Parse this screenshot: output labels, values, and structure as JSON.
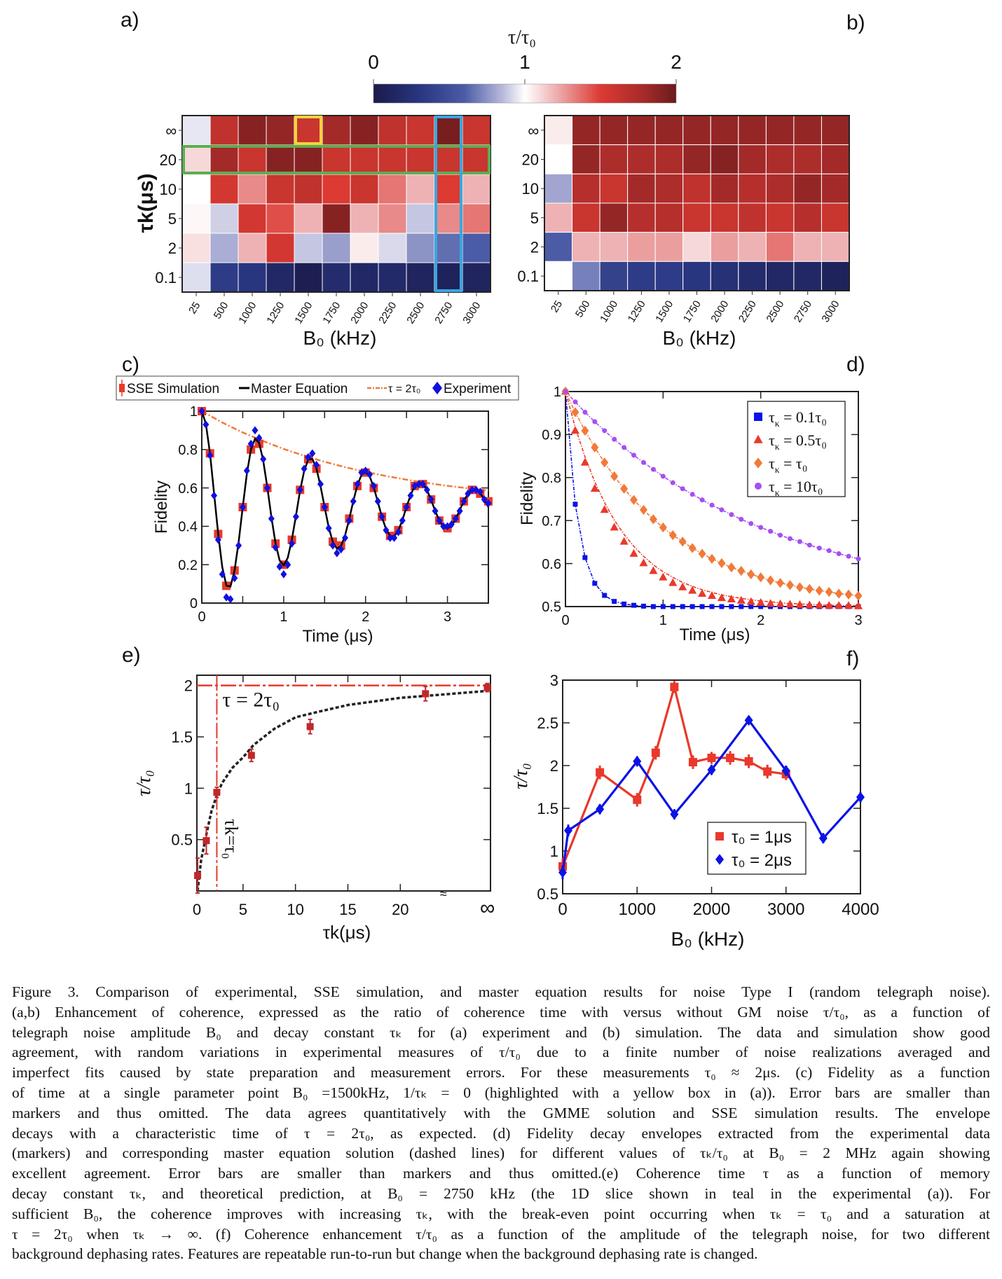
{
  "panel_labels": {
    "a": "a)",
    "b": "b)",
    "c": "c)",
    "d": "d)",
    "e": "e)",
    "f": "f)"
  },
  "colorbar": {
    "title": "τ/τ₀",
    "ticks": [
      "0",
      "1",
      "2"
    ],
    "tick_values": [
      0,
      1,
      2
    ],
    "range": [
      0,
      2
    ],
    "stops": [
      {
        "v": 0.0,
        "c": "#1b1a4a"
      },
      {
        "v": 0.3,
        "c": "#28357f"
      },
      {
        "v": 0.6,
        "c": "#4b5ba6"
      },
      {
        "v": 0.85,
        "c": "#b7b8da"
      },
      {
        "v": 1.0,
        "c": "#ffffff"
      },
      {
        "v": 1.2,
        "c": "#eeb2b4"
      },
      {
        "v": 1.5,
        "c": "#dc3a32"
      },
      {
        "v": 1.8,
        "c": "#a32a29"
      },
      {
        "v": 2.0,
        "c": "#6a1a1c"
      }
    ]
  },
  "chart_data": [
    {
      "id": "a",
      "type": "heatmap",
      "xlabel": "B₀ (kHz)",
      "ylabel": "τk(μs)",
      "columns": [
        "25",
        "500",
        "1000",
        "1250",
        "1500",
        "1750",
        "2000",
        "2250",
        "2500",
        "2750",
        "3000"
      ],
      "rows": [
        "∞",
        "20",
        "10",
        "5",
        "2",
        "0.1"
      ],
      "values": [
        [
          0.95,
          1.65,
          1.9,
          1.85,
          1.6,
          1.8,
          1.9,
          1.65,
          1.6,
          1.95,
          1.6
        ],
        [
          1.1,
          1.8,
          1.6,
          1.9,
          1.9,
          1.6,
          1.6,
          1.6,
          1.6,
          1.6,
          1.6
        ],
        [
          1.0,
          1.55,
          1.3,
          1.6,
          1.65,
          1.5,
          1.6,
          1.35,
          1.2,
          1.5,
          1.2
        ],
        [
          1.02,
          0.9,
          1.55,
          1.45,
          1.2,
          1.9,
          1.2,
          1.3,
          0.88,
          1.3,
          1.35
        ],
        [
          1.08,
          0.82,
          1.2,
          1.55,
          0.88,
          0.78,
          1.05,
          0.92,
          0.75,
          0.65,
          0.6
        ],
        [
          0.93,
          0.35,
          0.3,
          0.15,
          0.05,
          0.2,
          0.15,
          0.18,
          0.12,
          0.1,
          0.12
        ]
      ],
      "highlights": [
        {
          "kind": "cell",
          "row": "∞",
          "column": "1500",
          "color": "#f5d33b"
        },
        {
          "kind": "row",
          "row": "20",
          "color": "#5cae4f"
        },
        {
          "kind": "column",
          "column": "2750",
          "color": "#3aa6e0"
        }
      ]
    },
    {
      "id": "b",
      "type": "heatmap",
      "xlabel": "B₀ (kHz)",
      "columns": [
        "25",
        "500",
        "1000",
        "1250",
        "1500",
        "1750",
        "2000",
        "2250",
        "2500",
        "2750",
        "3000"
      ],
      "rows": [
        "∞",
        "20",
        "10",
        "5",
        "2",
        "0.1"
      ],
      "values": [
        [
          1.05,
          1.85,
          1.85,
          1.85,
          1.85,
          1.85,
          1.85,
          1.85,
          1.85,
          1.85,
          1.85
        ],
        [
          1.0,
          1.85,
          1.75,
          1.75,
          1.75,
          1.85,
          1.9,
          1.8,
          1.75,
          1.75,
          1.8
        ],
        [
          0.8,
          1.7,
          1.6,
          1.8,
          1.75,
          1.65,
          1.8,
          1.7,
          1.75,
          1.85,
          1.8
        ],
        [
          1.2,
          1.6,
          1.85,
          1.7,
          1.7,
          1.6,
          1.6,
          1.65,
          1.6,
          1.7,
          1.6
        ],
        [
          0.6,
          1.2,
          1.2,
          1.25,
          1.25,
          1.1,
          1.25,
          1.2,
          1.35,
          1.2,
          1.2
        ],
        [
          1.0,
          0.7,
          0.4,
          0.35,
          0.35,
          0.3,
          0.25,
          0.2,
          0.15,
          0.15,
          0.1
        ]
      ]
    },
    {
      "id": "c",
      "type": "line",
      "xlabel": "Time (μs)",
      "ylabel": "Fidelity",
      "xlim": [
        0,
        3.5
      ],
      "ylim": [
        0,
        1
      ],
      "xticks": [
        0,
        1,
        2,
        3
      ],
      "yticks": [
        0,
        0.2,
        0.4,
        0.6,
        0.8,
        1
      ],
      "ytick_labels": [
        "0",
        "0.2",
        "0.4",
        "0.6",
        "0.8",
        "1"
      ],
      "legend": [
        "SSE Simulation",
        "Master Equation",
        "τ = 2τ₀",
        "Experiment"
      ],
      "time": [
        0,
        0.05,
        0.1,
        0.15,
        0.2,
        0.25,
        0.3,
        0.35,
        0.4,
        0.45,
        0.5,
        0.55,
        0.6,
        0.65,
        0.7,
        0.75,
        0.8,
        0.85,
        0.9,
        0.95,
        1,
        1.05,
        1.1,
        1.15,
        1.2,
        1.25,
        1.3,
        1.35,
        1.4,
        1.45,
        1.5,
        1.55,
        1.6,
        1.65,
        1.7,
        1.75,
        1.8,
        1.85,
        1.9,
        1.95,
        2,
        2.05,
        2.1,
        2.15,
        2.2,
        2.25,
        2.3,
        2.35,
        2.4,
        2.45,
        2.5,
        2.55,
        2.6,
        2.65,
        2.7,
        2.75,
        2.8,
        2.85,
        2.9,
        2.95,
        3,
        3.05,
        3.1,
        3.15,
        3.2,
        3.25,
        3.3,
        3.35,
        3.4,
        3.45,
        3.5
      ],
      "master_equation": [
        1.0,
        0.934,
        0.78,
        0.572,
        0.36,
        0.188,
        0.091,
        0.086,
        0.169,
        0.319,
        0.5,
        0.673,
        0.8,
        0.857,
        0.835,
        0.743,
        0.604,
        0.449,
        0.312,
        0.223,
        0.197,
        0.236,
        0.33,
        0.456,
        0.585,
        0.689,
        0.748,
        0.751,
        0.701,
        0.61,
        0.5,
        0.395,
        0.318,
        0.284,
        0.297,
        0.353,
        0.437,
        0.531,
        0.614,
        0.668,
        0.684,
        0.66,
        0.603,
        0.527,
        0.449,
        0.385,
        0.349,
        0.347,
        0.378,
        0.433,
        0.5,
        0.563,
        0.61,
        0.631,
        0.623,
        0.589,
        0.538,
        0.481,
        0.431,
        0.398,
        0.388,
        0.403,
        0.438,
        0.484,
        0.531,
        0.57,
        0.591,
        0.592,
        0.574,
        0.54,
        0.5
      ],
      "experiment": [
        1.0,
        0.93,
        0.77,
        0.56,
        0.33,
        0.15,
        0.03,
        0.02,
        0.13,
        0.3,
        0.5,
        0.69,
        0.83,
        0.9,
        0.86,
        0.75,
        0.6,
        0.44,
        0.29,
        0.19,
        0.15,
        0.2,
        0.31,
        0.45,
        0.59,
        0.7,
        0.76,
        0.78,
        0.72,
        0.62,
        0.5,
        0.39,
        0.3,
        0.26,
        0.28,
        0.34,
        0.43,
        0.53,
        0.62,
        0.68,
        0.69,
        0.67,
        0.61,
        0.53,
        0.45,
        0.38,
        0.34,
        0.34,
        0.37,
        0.43,
        0.5,
        0.56,
        0.61,
        0.62,
        0.62,
        0.59,
        0.54,
        0.48,
        0.43,
        0.4,
        0.4,
        0.41,
        0.44,
        0.48,
        0.53,
        0.57,
        0.59,
        0.59,
        0.58,
        0.54,
        0.52
      ],
      "sse_time": [
        0,
        0.1,
        0.2,
        0.3,
        0.4,
        0.5,
        0.6,
        0.7,
        0.8,
        0.9,
        1,
        1.1,
        1.2,
        1.3,
        1.4,
        1.5,
        1.6,
        1.7,
        1.8,
        1.9,
        2,
        2.1,
        2.2,
        2.3,
        2.4,
        2.5,
        2.6,
        2.7,
        2.8,
        2.9,
        3,
        3.1,
        3.2,
        3.3,
        3.4,
        3.5
      ],
      "sse_simulation": [
        1.0,
        0.78,
        0.36,
        0.09,
        0.17,
        0.5,
        0.8,
        0.83,
        0.6,
        0.31,
        0.2,
        0.33,
        0.59,
        0.75,
        0.7,
        0.5,
        0.32,
        0.3,
        0.44,
        0.61,
        0.68,
        0.6,
        0.45,
        0.35,
        0.38,
        0.5,
        0.61,
        0.62,
        0.54,
        0.43,
        0.39,
        0.44,
        0.53,
        0.59,
        0.57,
        0.53
      ],
      "envelope_time": [
        0,
        0.25,
        0.5,
        0.75,
        1,
        1.25,
        1.5,
        1.75,
        2,
        2.25,
        2.5,
        2.75,
        3,
        3.25,
        3.5
      ],
      "envelope": [
        1,
        0.941,
        0.889,
        0.844,
        0.803,
        0.768,
        0.736,
        0.708,
        0.684,
        0.662,
        0.643,
        0.626,
        0.611,
        0.598,
        0.587
      ],
      "colors": {
        "sse": "#e8392b",
        "master": "#000000",
        "envelope": "#f07a3a",
        "experiment": "#1010e0"
      }
    },
    {
      "id": "d",
      "type": "scatter",
      "xlabel": "Time (μs)",
      "ylabel": "Fidelity",
      "xlim": [
        0,
        3
      ],
      "ylim": [
        0.5,
        1
      ],
      "xticks": [
        0,
        1,
        2,
        3
      ],
      "yticks": [
        0.5,
        0.6,
        0.7,
        0.8,
        0.9,
        1
      ],
      "ytick_labels": [
        "0.5",
        "0.6",
        "0.7",
        "0.8",
        "0.9",
        "1"
      ],
      "legend_position": "top-right",
      "time": [
        0,
        0.1,
        0.2,
        0.3,
        0.4,
        0.5,
        0.6,
        0.7,
        0.8,
        0.9,
        1,
        1.1,
        1.2,
        1.3,
        1.4,
        1.5,
        1.6,
        1.7,
        1.8,
        1.9,
        2,
        2.1,
        2.2,
        2.3,
        2.4,
        2.5,
        2.6,
        2.7,
        2.8,
        2.9,
        3
      ],
      "series": [
        {
          "name": "τκ = 0.1τ₀",
          "marker": "square",
          "color": "#0a12e6",
          "values": [
            1,
            0.738,
            0.614,
            0.554,
            0.526,
            0.512,
            0.506,
            0.503,
            0.501,
            0.5,
            0.5,
            0.5,
            0.5,
            0.5,
            0.5,
            0.5,
            0.5,
            0.5,
            0.5,
            0.5,
            0.5,
            0.5,
            0.5,
            0.5,
            0.5,
            0.5,
            0.5,
            0.5,
            0.5,
            0.5,
            0.5
          ]
        },
        {
          "name": "τκ = 0.5τ₀",
          "marker": "triangle",
          "color": "#e8392b",
          "values": [
            1,
            0.909,
            0.835,
            0.774,
            0.725,
            0.684,
            0.651,
            0.623,
            0.601,
            0.583,
            0.568,
            0.555,
            0.545,
            0.537,
            0.53,
            0.525,
            0.52,
            0.517,
            0.514,
            0.511,
            0.509,
            0.507,
            0.506,
            0.505,
            0.504,
            0.503,
            0.503,
            0.502,
            0.502,
            0.502,
            0.501
          ],
          "master": [
            1,
            0.917,
            0.848,
            0.79,
            0.742,
            0.701,
            0.668,
            0.64,
            0.617,
            0.597,
            0.581,
            0.568,
            0.556,
            0.547,
            0.539,
            0.533,
            0.527,
            0.523,
            0.519,
            0.516,
            0.513,
            0.511,
            0.509,
            0.507,
            0.506,
            0.505,
            0.504,
            0.503,
            0.503,
            0.502,
            0.502
          ]
        },
        {
          "name": "τκ = τ₀",
          "marker": "diamond",
          "color": "#f07a3a",
          "values": [
            1,
            0.952,
            0.909,
            0.87,
            0.835,
            0.803,
            0.774,
            0.748,
            0.725,
            0.703,
            0.684,
            0.666,
            0.651,
            0.636,
            0.623,
            0.611,
            0.601,
            0.591,
            0.583,
            0.575,
            0.568,
            0.561,
            0.555,
            0.55,
            0.545,
            0.541,
            0.537,
            0.534,
            0.53,
            0.528,
            0.525
          ]
        },
        {
          "name": "τκ = 10τ₀",
          "marker": "circle",
          "color": "#a64ff0",
          "values": [
            1,
            0.976,
            0.952,
            0.93,
            0.909,
            0.889,
            0.87,
            0.852,
            0.835,
            0.819,
            0.803,
            0.788,
            0.774,
            0.761,
            0.748,
            0.736,
            0.725,
            0.714,
            0.703,
            0.693,
            0.684,
            0.675,
            0.666,
            0.658,
            0.651,
            0.643,
            0.636,
            0.63,
            0.623,
            0.617,
            0.611
          ]
        }
      ]
    },
    {
      "id": "e",
      "type": "scatter",
      "xlabel": "τk(μs)",
      "ylabel": "τ/τ₀",
      "xlim": [
        0.6,
        28.6
      ],
      "ylim": [
        0,
        2.1
      ],
      "xticks": [
        5,
        10,
        15,
        20
      ],
      "xtick_labels": [
        "0",
        "5",
        "10",
        "15",
        "20",
        "∞"
      ],
      "yticks": [
        0.5,
        1,
        1.5,
        2
      ],
      "ytick_labels": [
        "0.5",
        "1",
        "1.5",
        "2"
      ],
      "points_x": [
        "0.67",
        "1.5",
        "2.5",
        "5.8",
        "11.4",
        "22.4",
        "∞"
      ],
      "points_y": [
        0.15,
        0.49,
        0.96,
        1.32,
        1.6,
        1.92,
        1.98
      ],
      "errors": [
        0.17,
        0.13,
        0.05,
        0.06,
        0.07,
        0.07,
        0.04
      ],
      "theory_x": [
        0.67,
        1,
        1.5,
        2,
        2.5,
        3,
        4,
        5,
        6,
        8,
        10,
        12,
        15,
        20,
        25,
        28.6
      ],
      "theory_y": [
        0,
        0.3,
        0.55,
        0.78,
        0.93,
        1.05,
        1.2,
        1.3,
        1.42,
        1.58,
        1.69,
        1.74,
        1.81,
        1.88,
        1.92,
        1.95
      ],
      "saturation_label": "τ = 2τ₀",
      "saturation_value": 2,
      "break_even_label": "τk=τ₀",
      "break_even_x": 2.5,
      "colors": {
        "points": "#c0282b",
        "reference": "#e8392b",
        "theory": "#222222"
      }
    },
    {
      "id": "f",
      "type": "line",
      "xlabel": "B₀ (kHz)",
      "ylabel": "τ/τ₀",
      "xlim": [
        0,
        4000
      ],
      "ylim": [
        0.5,
        3
      ],
      "xticks": [
        0,
        1000,
        2000,
        3000,
        4000
      ],
      "yticks": [
        0.5,
        1,
        1.5,
        2,
        2.5,
        3
      ],
      "ytick_labels": [
        "0.5",
        "1",
        "1.5",
        "2",
        "2.5",
        "3"
      ],
      "legend_position": "bottom-right",
      "series": [
        {
          "name": "τ₀ = 1μs",
          "marker": "square",
          "color": "#e8392b",
          "x": [
            0,
            500,
            1000,
            1250,
            1500,
            1750,
            2000,
            2250,
            2500,
            2750,
            3000
          ],
          "y": [
            0.82,
            1.92,
            1.6,
            2.15,
            2.92,
            2.04,
            2.09,
            2.09,
            2.05,
            1.93,
            1.9
          ],
          "err": [
            0.1,
            0.08,
            0.08,
            0.08,
            0.07,
            0.08,
            0.07,
            0.08,
            0.08,
            0.08,
            0.07
          ]
        },
        {
          "name": "τ₀ = 2μs",
          "marker": "diamond",
          "color": "#0a12e6",
          "x": [
            0,
            75,
            500,
            1000,
            1500,
            2000,
            2500,
            3000,
            3500,
            4000
          ],
          "y": [
            0.75,
            1.24,
            1.49,
            2.05,
            1.43,
            1.95,
            2.53,
            1.94,
            1.15,
            1.63
          ],
          "err": [
            0.08,
            0.07,
            0.06,
            0.06,
            0.06,
            0.06,
            0.05,
            0.06,
            0.06,
            0.06
          ]
        }
      ]
    }
  ],
  "caption": {
    "lines": [
      "Figure 3. Comparison of experimental, SSE simulation, and master equation results for noise Type I (random telegraph noise).",
      "(a,b) Enhancement of coherence, expressed as the ratio of coherence time with versus without GM noise τ/τ₀, as a function of",
      "telegraph noise amplitude B₀ and decay constant τₖ for (a) experiment and (b) simulation. The data and simulation show good",
      "agreement, with random variations in experimental measures of τ/τ₀ due to a finite number of noise realizations averaged and",
      "imperfect fits caused by state preparation and measurement errors. For these measurements τ₀ ≈ 2μs. (c) Fidelity as a function",
      "of time at a single parameter point B₀ =1500kHz, 1/τₖ = 0 (highlighted with a yellow box in (a)). Error bars are smaller than",
      "markers and thus omitted. The data agrees quantitatively with the GMME solution and SSE simulation results. The envelope",
      "decays with a characteristic time of τ = 2τ₀, as expected. (d) Fidelity decay envelopes extracted from the experimental data",
      "(markers) and corresponding master equation solution (dashed lines) for different values of τₖ/τ₀ at B₀ = 2 MHz again showing",
      "excellent agreement. Error bars are smaller than markers and thus omitted.(e) Coherence time τ as a function of memory",
      "decay constant τₖ, and theoretical prediction, at B₀ = 2750 kHz (the 1D slice shown in teal in the experimental (a)). For",
      "sufficient B₀, the coherence improves with increasing τₖ, with the break-even point occurring when τₖ = τ₀ and a saturation at",
      "τ = 2τ₀ when τₖ → ∞. (f) Coherence enhancement τ/τ₀ as a function of the amplitude of the telegraph noise, for two different",
      "background dephasing rates. Features are repeatable run-to-run but change when the background dephasing rate is changed."
    ]
  }
}
